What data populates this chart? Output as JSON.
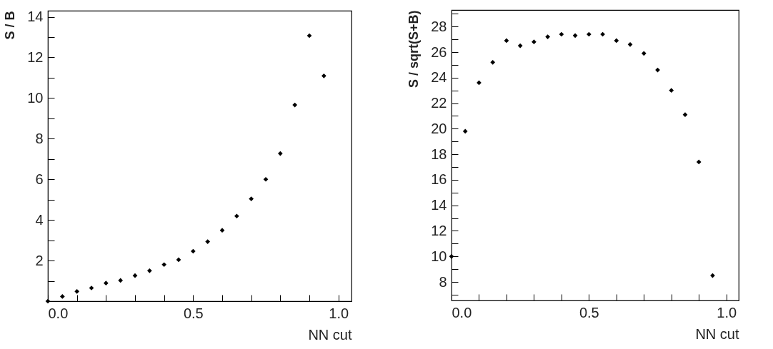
{
  "chart_data": [
    {
      "type": "scatter",
      "xlabel": "NN cut",
      "ylabel": "S / B",
      "marker": "diamond",
      "grid": false,
      "x": [
        0,
        0.05,
        0.1,
        0.15,
        0.2,
        0.25,
        0.3,
        0.35,
        0.4,
        0.45,
        0.5,
        0.55,
        0.6,
        0.65,
        0.7,
        0.75,
        0.8,
        0.85,
        0.9,
        0.95
      ],
      "series": [
        {
          "color": "#000000",
          "values": [
            0,
            0.23,
            0.48,
            0.65,
            0.89,
            1.02,
            1.26,
            1.5,
            1.8,
            2.04,
            2.46,
            2.93,
            3.49,
            4.19,
            5.04,
            6.0,
            7.27,
            9.66,
            13.07,
            11.09
          ]
        }
      ],
      "xlim": [
        0,
        1.045
      ],
      "ylim": [
        0,
        14.3
      ],
      "xticks": [
        {
          "value": 0,
          "label": "0.0"
        },
        {
          "value": 0.1,
          "label": null
        },
        {
          "value": 0.2,
          "label": null
        },
        {
          "value": 0.3,
          "label": null
        },
        {
          "value": 0.4,
          "label": null
        },
        {
          "value": 0.5,
          "label": "0.5"
        },
        {
          "value": 0.6,
          "label": null
        },
        {
          "value": 0.7,
          "label": null
        },
        {
          "value": 0.8,
          "label": null
        },
        {
          "value": 0.9,
          "label": null
        },
        {
          "value": 1,
          "label": "1.0"
        }
      ],
      "yticks": [
        {
          "value": 1,
          "label": null
        },
        2,
        {
          "value": 3,
          "label": null
        },
        4,
        {
          "value": 5,
          "label": null
        },
        6,
        {
          "value": 7,
          "label": null
        },
        8,
        {
          "value": 9,
          "label": null
        },
        10,
        {
          "value": 11,
          "label": null
        },
        12,
        {
          "value": 13,
          "label": null
        },
        14
      ]
    },
    {
      "type": "scatter",
      "xlabel": "NN cut",
      "ylabel": "S / sqrt(S+B)",
      "marker": "diamond",
      "grid": false,
      "x": [
        0,
        0.05,
        0.1,
        0.15,
        0.2,
        0.25,
        0.3,
        0.35,
        0.4,
        0.45,
        0.5,
        0.55,
        0.6,
        0.65,
        0.7,
        0.75,
        0.8,
        0.85,
        0.9,
        0.95
      ],
      "series": [
        {
          "color": "#000000",
          "values": [
            10.0,
            19.8,
            23.6,
            25.2,
            26.9,
            26.5,
            26.8,
            27.2,
            27.4,
            27.3,
            27.4,
            27.4,
            26.9,
            26.6,
            25.9,
            24.6,
            23.0,
            21.1,
            17.4,
            8.5
          ]
        }
      ],
      "xlim": [
        0,
        1.045
      ],
      "ylim": [
        6.55,
        29.3
      ],
      "xticks": [
        {
          "value": 0,
          "label": "0.0"
        },
        {
          "value": 0.1,
          "label": null
        },
        {
          "value": 0.2,
          "label": null
        },
        {
          "value": 0.3,
          "label": null
        },
        {
          "value": 0.4,
          "label": null
        },
        {
          "value": 0.5,
          "label": "0.5"
        },
        {
          "value": 0.6,
          "label": null
        },
        {
          "value": 0.7,
          "label": null
        },
        {
          "value": 0.8,
          "label": null
        },
        {
          "value": 0.9,
          "label": null
        },
        {
          "value": 1,
          "label": "1.0"
        }
      ],
      "yticks": [
        {
          "value": 7,
          "label": null
        },
        8,
        {
          "value": 9,
          "label": null
        },
        10,
        {
          "value": 11,
          "label": null
        },
        12,
        {
          "value": 13,
          "label": null
        },
        14,
        {
          "value": 15,
          "label": null
        },
        16,
        {
          "value": 17,
          "label": null
        },
        18,
        {
          "value": 19,
          "label": null
        },
        20,
        {
          "value": 21,
          "label": null
        },
        22,
        {
          "value": 23,
          "label": null
        },
        24,
        {
          "value": 25,
          "label": null
        },
        26,
        {
          "value": 27,
          "label": null
        },
        28,
        {
          "value": 29,
          "label": null
        }
      ]
    }
  ]
}
